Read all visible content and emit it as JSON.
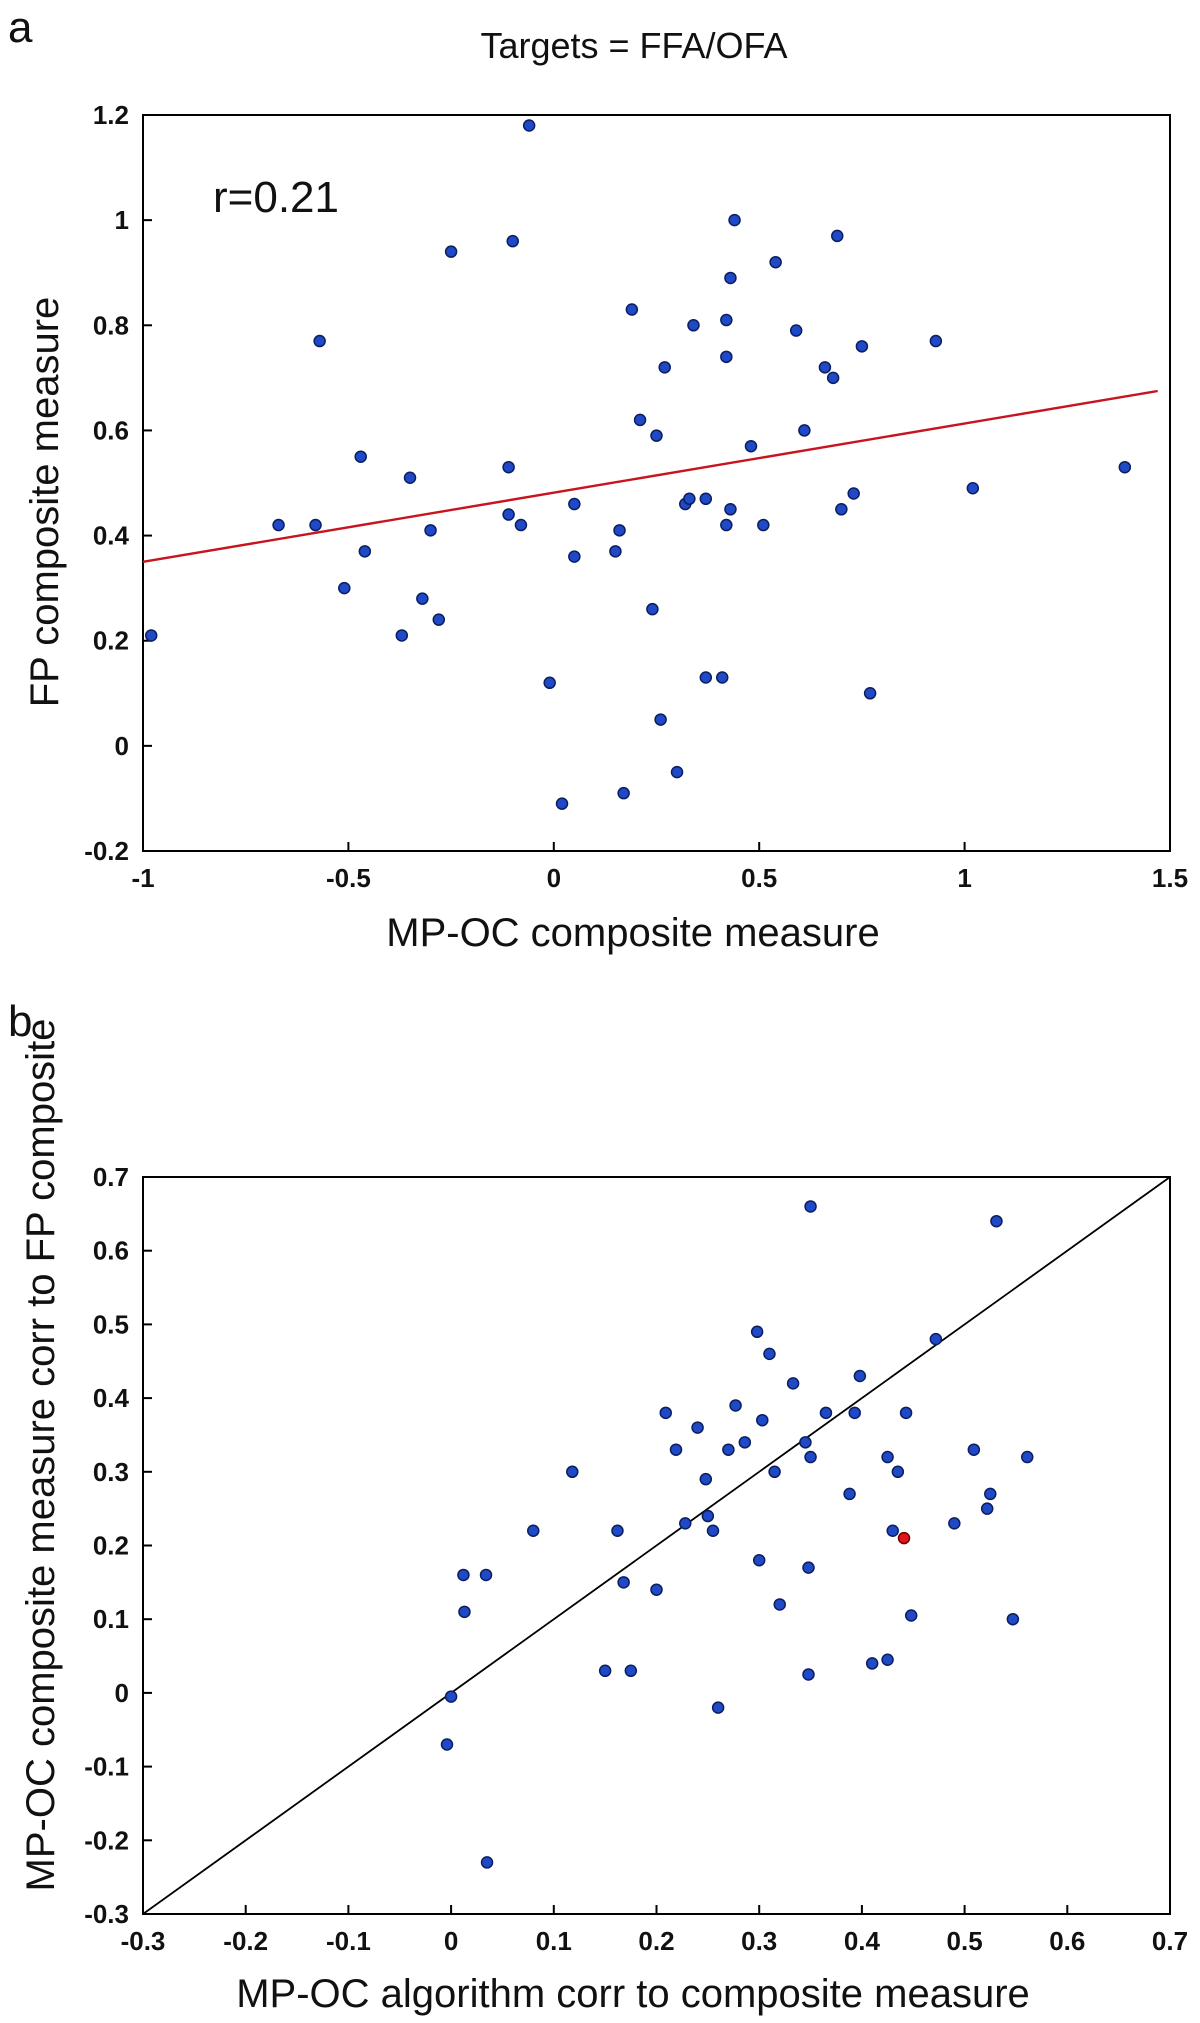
{
  "chart_data": [
    {
      "panel": "a",
      "type": "scatter",
      "title": "Targets = FFA/OFA",
      "xlabel": "MP-OC composite measure",
      "ylabel": "FP composite measure",
      "xlim": [
        -1,
        1.5
      ],
      "ylim": [
        -0.2,
        1.2
      ],
      "xticks": [
        -1,
        -0.5,
        0,
        0.5,
        1,
        1.5
      ],
      "xtick_labels": [
        "-1",
        "-0.5",
        "0",
        "0.5",
        "1",
        "1.5"
      ],
      "yticks": [
        -0.2,
        0,
        0.2,
        0.4,
        0.6,
        0.8,
        1,
        1.2
      ],
      "ytick_labels": [
        "-0.2",
        "0",
        "0.2",
        "0.4",
        "0.6",
        "0.8",
        "1",
        "1.2"
      ],
      "annotation": "r=0.21",
      "fit_line": {
        "color": "#c8141e",
        "x": [
          -1,
          1.47
        ],
        "y": [
          0.35,
          0.675
        ]
      },
      "grid": false,
      "points": [
        {
          "x": -0.98,
          "y": 0.21
        },
        {
          "x": -0.67,
          "y": 0.42
        },
        {
          "x": -0.58,
          "y": 0.42
        },
        {
          "x": -0.57,
          "y": 0.77
        },
        {
          "x": -0.51,
          "y": 0.3
        },
        {
          "x": -0.47,
          "y": 0.55
        },
        {
          "x": -0.46,
          "y": 0.37
        },
        {
          "x": -0.37,
          "y": 0.21
        },
        {
          "x": -0.35,
          "y": 0.51
        },
        {
          "x": -0.32,
          "y": 0.28
        },
        {
          "x": -0.3,
          "y": 0.41
        },
        {
          "x": -0.28,
          "y": 0.24
        },
        {
          "x": -0.25,
          "y": 0.94
        },
        {
          "x": -0.11,
          "y": 0.53
        },
        {
          "x": -0.11,
          "y": 0.44
        },
        {
          "x": -0.1,
          "y": 0.96
        },
        {
          "x": -0.08,
          "y": 0.42
        },
        {
          "x": -0.06,
          "y": 1.18
        },
        {
          "x": -0.01,
          "y": 0.12
        },
        {
          "x": 0.02,
          "y": -0.11
        },
        {
          "x": 0.05,
          "y": 0.46
        },
        {
          "x": 0.05,
          "y": 0.36
        },
        {
          "x": 0.15,
          "y": 0.37
        },
        {
          "x": 0.16,
          "y": 0.41
        },
        {
          "x": 0.17,
          "y": -0.09
        },
        {
          "x": 0.19,
          "y": 0.83
        },
        {
          "x": 0.21,
          "y": 0.62
        },
        {
          "x": 0.24,
          "y": 0.26
        },
        {
          "x": 0.25,
          "y": 0.59
        },
        {
          "x": 0.26,
          "y": 0.05
        },
        {
          "x": 0.27,
          "y": 0.72
        },
        {
          "x": 0.3,
          "y": -0.05
        },
        {
          "x": 0.32,
          "y": 0.46
        },
        {
          "x": 0.33,
          "y": 0.47
        },
        {
          "x": 0.34,
          "y": 0.8
        },
        {
          "x": 0.37,
          "y": 0.13
        },
        {
          "x": 0.37,
          "y": 0.47
        },
        {
          "x": 0.41,
          "y": 0.13
        },
        {
          "x": 0.42,
          "y": 0.42
        },
        {
          "x": 0.42,
          "y": 0.81
        },
        {
          "x": 0.42,
          "y": 0.74
        },
        {
          "x": 0.43,
          "y": 0.45
        },
        {
          "x": 0.43,
          "y": 0.89
        },
        {
          "x": 0.44,
          "y": 1.0
        },
        {
          "x": 0.48,
          "y": 0.57
        },
        {
          "x": 0.51,
          "y": 0.42
        },
        {
          "x": 0.54,
          "y": 0.92
        },
        {
          "x": 0.59,
          "y": 0.79
        },
        {
          "x": 0.61,
          "y": 0.6
        },
        {
          "x": 0.66,
          "y": 0.72
        },
        {
          "x": 0.68,
          "y": 0.7
        },
        {
          "x": 0.69,
          "y": 0.97
        },
        {
          "x": 0.7,
          "y": 0.45
        },
        {
          "x": 0.73,
          "y": 0.48
        },
        {
          "x": 0.75,
          "y": 0.76
        },
        {
          "x": 0.77,
          "y": 0.1
        },
        {
          "x": 0.93,
          "y": 0.77
        },
        {
          "x": 1.02,
          "y": 0.49
        },
        {
          "x": 1.39,
          "y": 0.53
        }
      ]
    },
    {
      "panel": "b",
      "type": "scatter",
      "title": "",
      "xlabel": "MP-OC algorithm corr to composite measure",
      "ylabel": "MP-OC composite measure corr to FP composite",
      "xlim": [
        -0.3,
        0.7
      ],
      "ylim": [
        -0.3,
        0.7
      ],
      "xticks": [
        -0.3,
        -0.2,
        -0.1,
        0,
        0.1,
        0.2,
        0.3,
        0.4,
        0.5,
        0.6,
        0.7
      ],
      "xtick_labels": [
        "-0.3",
        "-0.2",
        "-0.1",
        "0",
        "0.1",
        "0.2",
        "0.3",
        "0.4",
        "0.5",
        "0.6",
        "0.7"
      ],
      "yticks": [
        -0.3,
        -0.2,
        -0.1,
        0,
        0.1,
        0.2,
        0.3,
        0.4,
        0.5,
        0.6,
        0.7
      ],
      "ytick_labels": [
        "-0.3",
        "-0.2",
        "-0.1",
        "0",
        "0.1",
        "0.2",
        "0.3",
        "0.4",
        "0.5",
        "0.6",
        "0.7"
      ],
      "reference_line": {
        "color": "#000000",
        "x": [
          -0.3,
          0.7
        ],
        "y": [
          -0.3,
          0.7
        ]
      },
      "highlight_color": "#e0141e",
      "grid": false,
      "points": [
        {
          "x": -0.004,
          "y": -0.07
        },
        {
          "x": 0.0,
          "y": -0.005
        },
        {
          "x": 0.012,
          "y": 0.16
        },
        {
          "x": 0.013,
          "y": 0.11
        },
        {
          "x": 0.034,
          "y": 0.16
        },
        {
          "x": 0.035,
          "y": -0.23
        },
        {
          "x": 0.08,
          "y": 0.22
        },
        {
          "x": 0.118,
          "y": 0.3
        },
        {
          "x": 0.15,
          "y": 0.03
        },
        {
          "x": 0.162,
          "y": 0.22
        },
        {
          "x": 0.168,
          "y": 0.15
        },
        {
          "x": 0.175,
          "y": 0.03
        },
        {
          "x": 0.2,
          "y": 0.14
        },
        {
          "x": 0.209,
          "y": 0.38
        },
        {
          "x": 0.219,
          "y": 0.33
        },
        {
          "x": 0.228,
          "y": 0.23
        },
        {
          "x": 0.24,
          "y": 0.36
        },
        {
          "x": 0.248,
          "y": 0.29
        },
        {
          "x": 0.25,
          "y": 0.24
        },
        {
          "x": 0.255,
          "y": 0.22
        },
        {
          "x": 0.26,
          "y": -0.02
        },
        {
          "x": 0.27,
          "y": 0.33
        },
        {
          "x": 0.277,
          "y": 0.39
        },
        {
          "x": 0.286,
          "y": 0.34
        },
        {
          "x": 0.298,
          "y": 0.49
        },
        {
          "x": 0.3,
          "y": 0.18
        },
        {
          "x": 0.303,
          "y": 0.37
        },
        {
          "x": 0.31,
          "y": 0.46
        },
        {
          "x": 0.315,
          "y": 0.3
        },
        {
          "x": 0.32,
          "y": 0.12
        },
        {
          "x": 0.333,
          "y": 0.42
        },
        {
          "x": 0.345,
          "y": 0.34
        },
        {
          "x": 0.348,
          "y": 0.17
        },
        {
          "x": 0.348,
          "y": 0.025
        },
        {
          "x": 0.35,
          "y": 0.66
        },
        {
          "x": 0.35,
          "y": 0.32
        },
        {
          "x": 0.365,
          "y": 0.38
        },
        {
          "x": 0.388,
          "y": 0.27
        },
        {
          "x": 0.393,
          "y": 0.38
        },
        {
          "x": 0.398,
          "y": 0.43
        },
        {
          "x": 0.41,
          "y": 0.04
        },
        {
          "x": 0.425,
          "y": 0.045
        },
        {
          "x": 0.425,
          "y": 0.32
        },
        {
          "x": 0.43,
          "y": 0.22
        },
        {
          "x": 0.435,
          "y": 0.3
        },
        {
          "x": 0.441,
          "y": 0.21,
          "highlight": true
        },
        {
          "x": 0.443,
          "y": 0.38
        },
        {
          "x": 0.448,
          "y": 0.105
        },
        {
          "x": 0.472,
          "y": 0.48
        },
        {
          "x": 0.49,
          "y": 0.23
        },
        {
          "x": 0.509,
          "y": 0.33
        },
        {
          "x": 0.522,
          "y": 0.25
        },
        {
          "x": 0.525,
          "y": 0.27
        },
        {
          "x": 0.531,
          "y": 0.64
        },
        {
          "x": 0.547,
          "y": 0.1
        },
        {
          "x": 0.561,
          "y": 0.32
        }
      ]
    }
  ],
  "panel_labels": {
    "a": "a",
    "b": "b"
  }
}
